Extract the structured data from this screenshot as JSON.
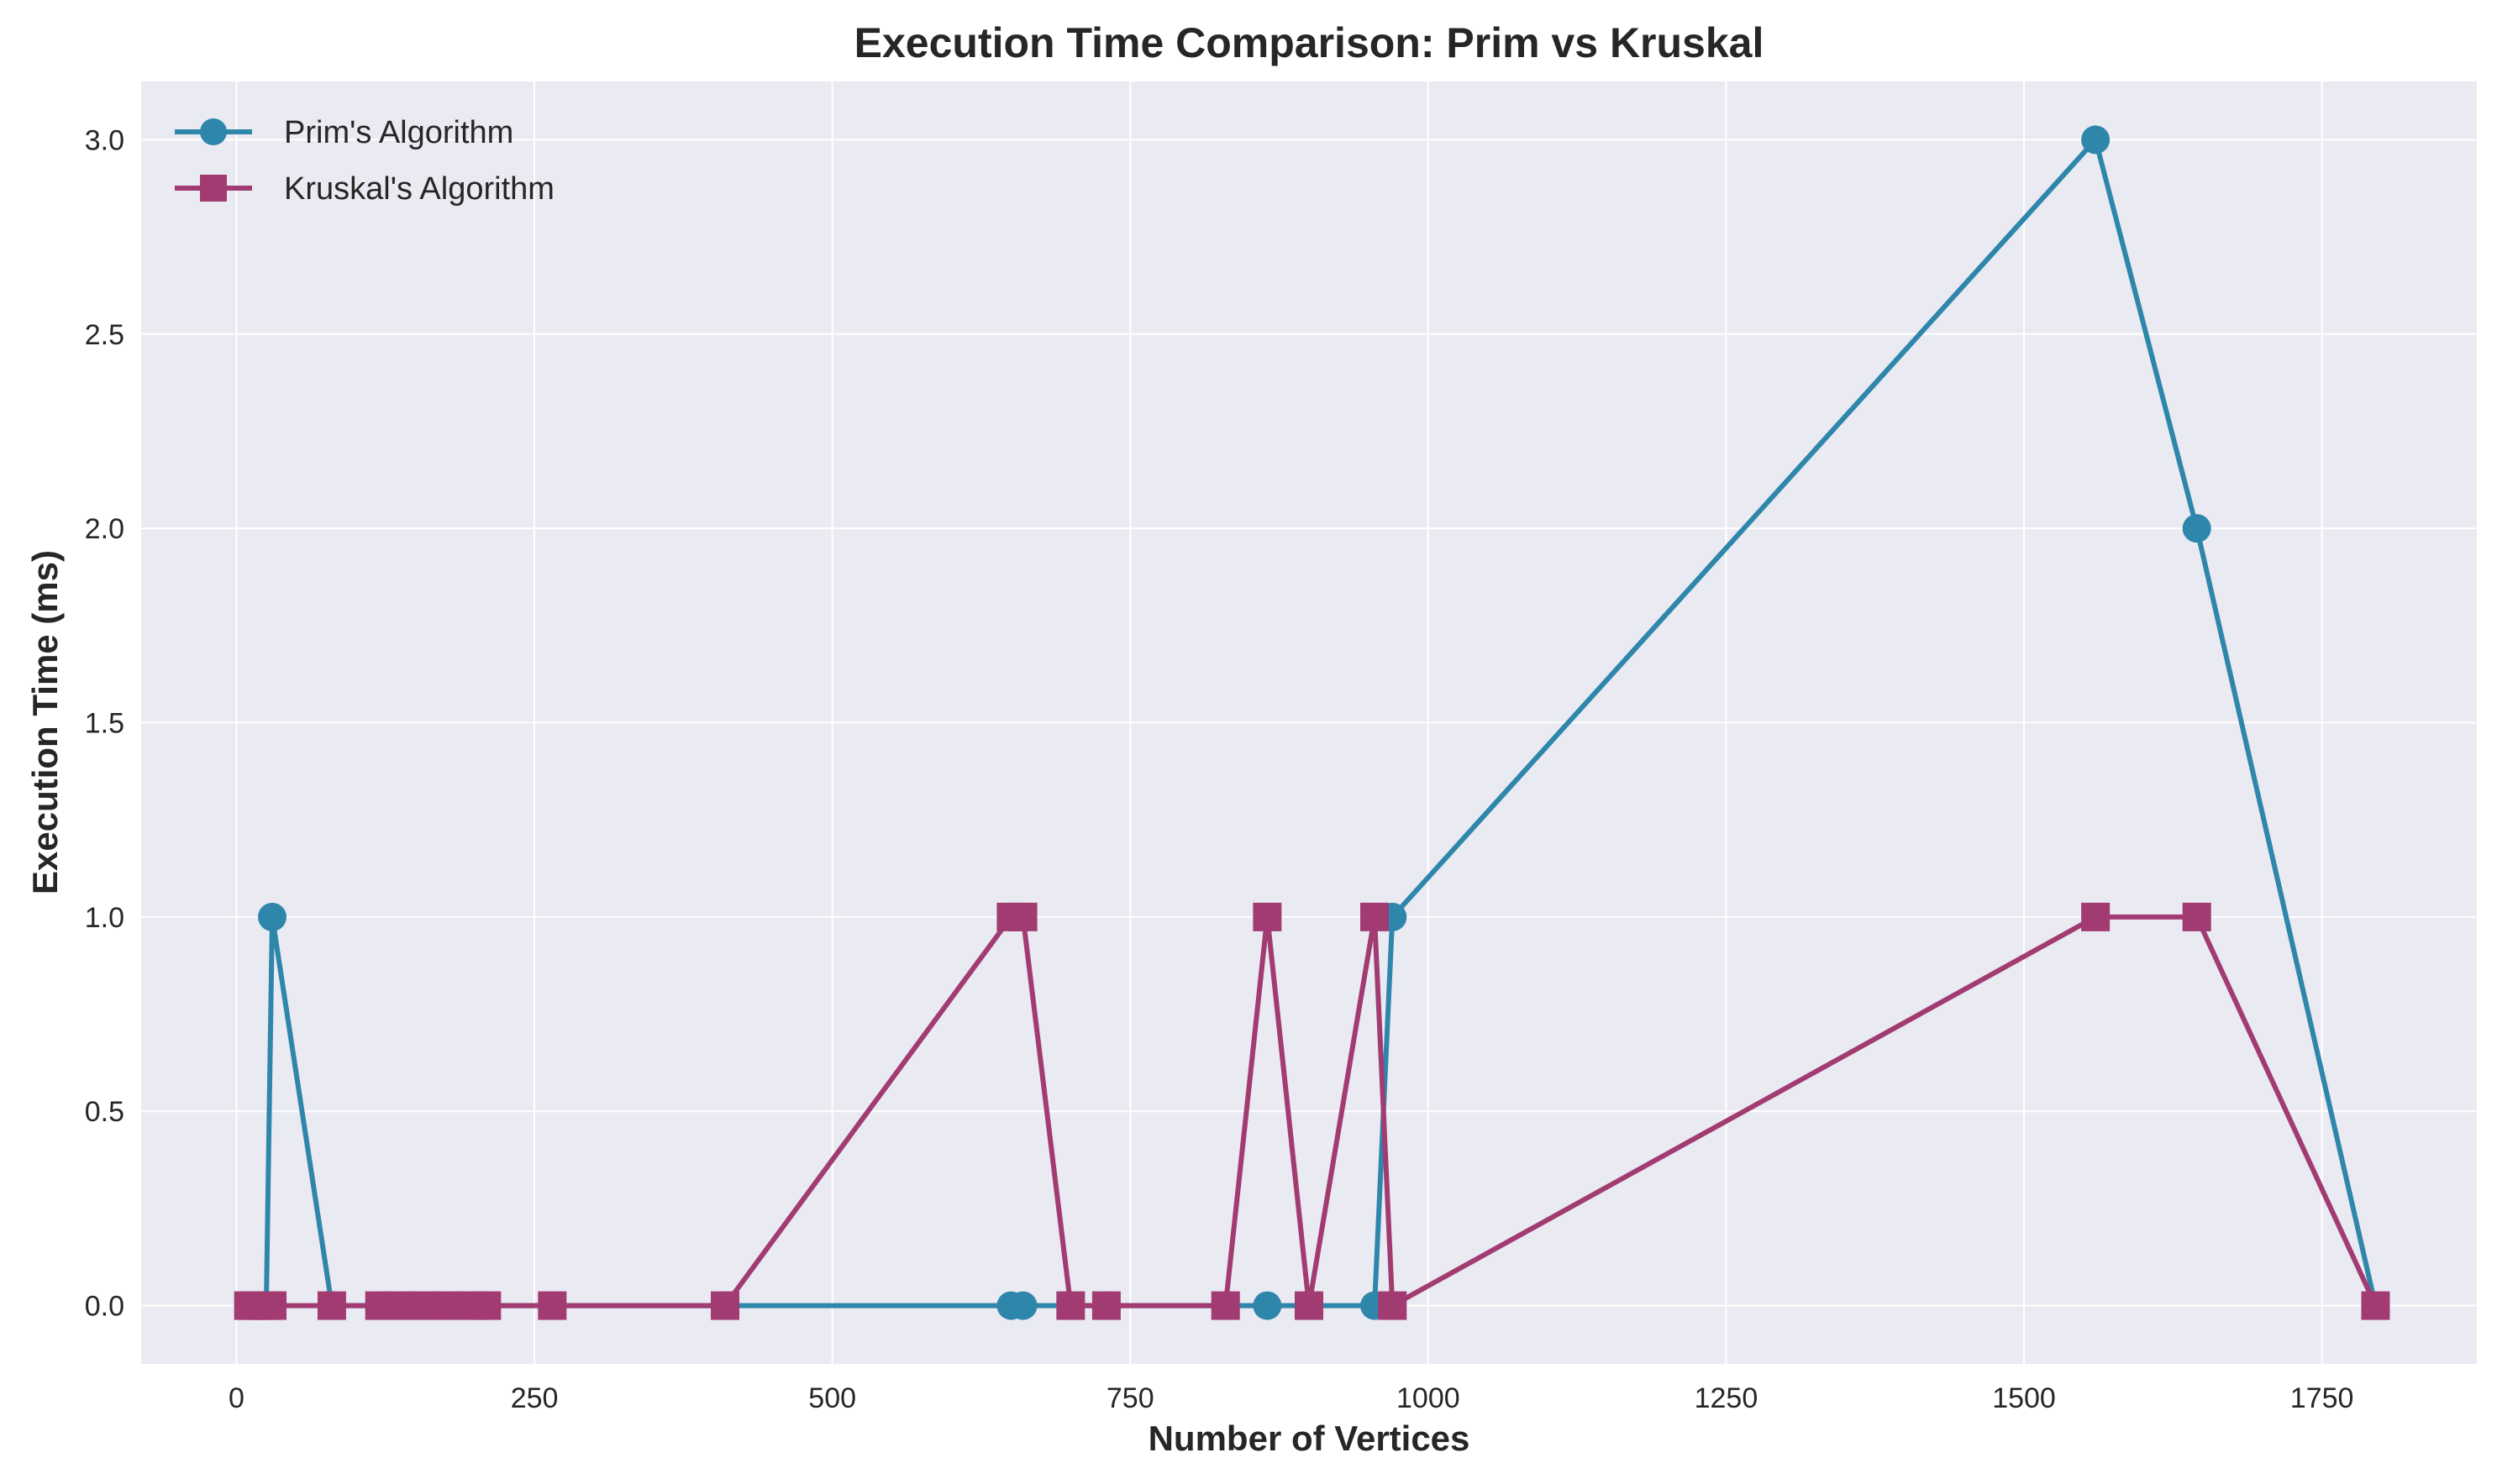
{
  "chart_data": {
    "type": "line",
    "title": "Execution Time Comparison: Prim vs Kruskal",
    "xlabel": "Number of Vertices",
    "ylabel": "Execution Time (ms)",
    "xlim": [
      -80,
      1880
    ],
    "ylim": [
      -0.15,
      3.15
    ],
    "xticks": [
      0,
      250,
      500,
      750,
      1000,
      1250,
      1500,
      1750
    ],
    "yticks": [
      0.0,
      0.5,
      1.0,
      1.5,
      2.0,
      2.5,
      3.0
    ],
    "xtick_labels": [
      "0",
      "250",
      "500",
      "750",
      "1000",
      "1250",
      "1500",
      "1750"
    ],
    "ytick_labels": [
      "0.0",
      "0.5",
      "1.0",
      "1.5",
      "2.0",
      "2.5",
      "3.0"
    ],
    "grid": true,
    "legend_position": "top-left",
    "x": [
      10,
      15,
      20,
      25,
      30,
      80,
      120,
      140,
      160,
      180,
      200,
      210,
      265,
      410,
      650,
      660,
      700,
      730,
      830,
      865,
      900,
      955,
      970,
      1560,
      1645,
      1795
    ],
    "series": [
      {
        "name": "Prim's Algorithm",
        "color": "#2e86ab",
        "marker": "circle",
        "values": [
          0,
          0,
          0,
          0,
          1,
          0,
          0,
          0,
          0,
          0,
          0,
          0,
          0,
          0,
          0,
          0,
          0,
          0,
          0,
          0,
          0,
          0,
          1,
          3,
          2,
          0
        ]
      },
      {
        "name": "Kruskal's Algorithm",
        "color": "#a23b72",
        "marker": "square",
        "values": [
          0,
          0,
          0,
          0,
          0,
          0,
          0,
          0,
          0,
          0,
          0,
          0,
          0,
          0,
          1,
          1,
          0,
          0,
          0,
          1,
          0,
          1,
          0,
          1,
          1,
          0
        ]
      }
    ]
  }
}
